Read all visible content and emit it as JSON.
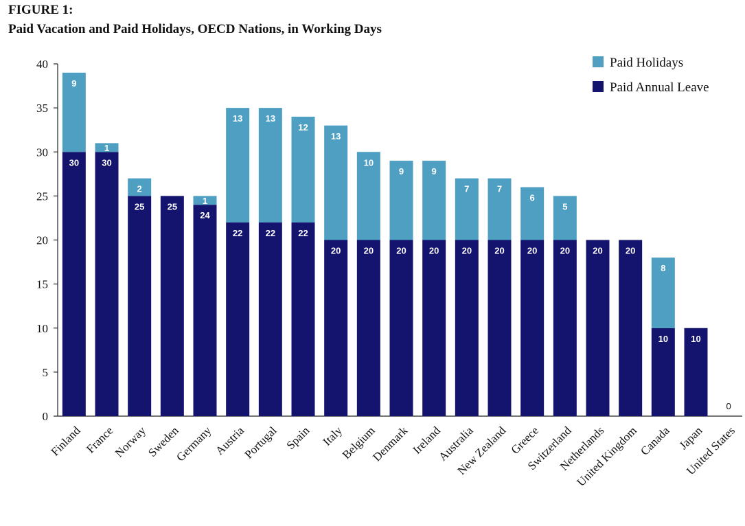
{
  "figure_label": "FIGURE 1:",
  "chart_data": {
    "type": "bar",
    "stacked": true,
    "title": "Paid Vacation and Paid Holidays, OECD Nations, in Working Days",
    "xlabel": "",
    "ylabel": "",
    "ylim": [
      0,
      40
    ],
    "yticks": [
      0,
      5,
      10,
      15,
      20,
      25,
      30,
      35,
      40
    ],
    "legend_position": "top-right",
    "grid": false,
    "categories": [
      "Finland",
      "France",
      "Norway",
      "Sweden",
      "Germany",
      "Austria",
      "Portugal",
      "Spain",
      "Italy",
      "Belgium",
      "Denmark",
      "Ireland",
      "Australia",
      "New Zealand",
      "Greece",
      "Switzerland",
      "Netherlands",
      "United Kingdom",
      "Canada",
      "Japan",
      "United States"
    ],
    "series": [
      {
        "name": "Paid Annual Leave",
        "color": "#14146e",
        "values": [
          30,
          30,
          25,
          25,
          24,
          22,
          22,
          22,
          20,
          20,
          20,
          20,
          20,
          20,
          20,
          20,
          20,
          20,
          10,
          10,
          0
        ],
        "labels": [
          "30",
          "30",
          "25",
          "25",
          "24",
          "22",
          "22",
          "22",
          "20",
          "20",
          "20",
          "20",
          "20",
          "20",
          "20",
          "20",
          "20",
          "20",
          "10",
          "10",
          ""
        ]
      },
      {
        "name": "Paid Holidays",
        "color": "#4f9fc3",
        "values": [
          9,
          1,
          2,
          0,
          1,
          13,
          13,
          12,
          13,
          10,
          9,
          9,
          7,
          7,
          6,
          5,
          0,
          0,
          8,
          0,
          0
        ],
        "labels": [
          "9",
          "1",
          "2",
          "",
          "1",
          "13",
          "13",
          "12",
          "13",
          "10",
          "9",
          "9",
          "7",
          "7",
          "6",
          "5",
          "",
          "",
          "8",
          "",
          ""
        ]
      }
    ],
    "total_labels": [
      "",
      "",
      "",
      "",
      "",
      "",
      "",
      "",
      "",
      "",
      "",
      "",
      "",
      "",
      "",
      "",
      "",
      "",
      "",
      "",
      "0"
    ],
    "legend_order": [
      "Paid Holidays",
      "Paid Annual Leave"
    ]
  }
}
